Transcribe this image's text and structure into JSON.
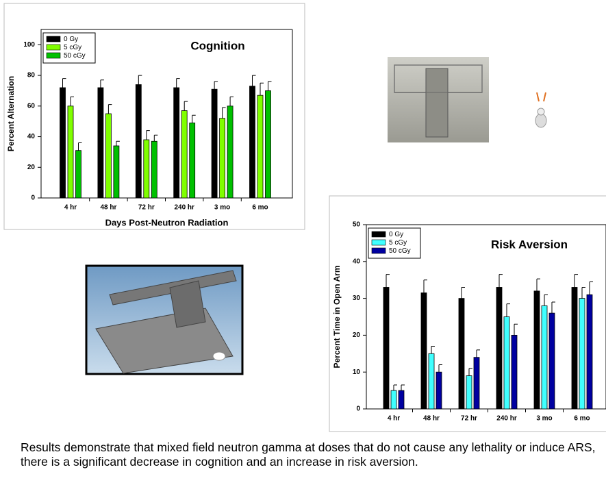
{
  "chart_data": [
    {
      "type": "bar",
      "title": "Cognition",
      "x_label": "Days Post-Neutron Radiation",
      "y_label": "Percent Alternation",
      "categories": [
        "4 hr",
        "48 hr",
        "72 hr",
        "240 hr",
        "3 mo",
        "6 mo"
      ],
      "series": [
        {
          "name": "0 Gy",
          "color": "#000000",
          "values": [
            72,
            72,
            74,
            72,
            71,
            73
          ],
          "errors": [
            6,
            5,
            6,
            6,
            5,
            7
          ]
        },
        {
          "name": "5 cGy",
          "color": "#80ff00",
          "values": [
            60,
            55,
            38,
            57,
            52,
            67
          ],
          "errors": [
            6,
            6,
            6,
            6,
            7,
            8
          ]
        },
        {
          "name": "50 cGy",
          "color": "#00c000",
          "values": [
            31,
            34,
            37,
            49,
            60,
            70
          ],
          "errors": [
            5,
            3,
            4,
            5,
            6,
            6
          ]
        }
      ],
      "ylim": [
        0,
        110
      ],
      "yticks": [
        0,
        20,
        40,
        60,
        80,
        100
      ],
      "legend": "upper left"
    },
    {
      "type": "bar",
      "title": "Risk Aversion",
      "y_label": "Percent Time in Open Arm",
      "categories": [
        "4 hr",
        "48 hr",
        "72 hr",
        "240 hr",
        "3 mo",
        "6 mo"
      ],
      "series": [
        {
          "name": "0 Gy",
          "color": "#000000",
          "values": [
            33,
            31.5,
            30,
            33,
            32,
            33
          ],
          "errors": [
            3.5,
            3.5,
            3,
            3.5,
            3.3,
            3.5
          ]
        },
        {
          "name": "5 cGy",
          "color": "#40ffff",
          "values": [
            5,
            15,
            9,
            25,
            28,
            30
          ],
          "errors": [
            1.5,
            2,
            2,
            3.5,
            3,
            3
          ]
        },
        {
          "name": "50 cGy",
          "color": "#0000a0",
          "values": [
            5,
            10,
            14,
            20,
            26,
            31
          ],
          "errors": [
            1.5,
            2,
            2,
            3,
            3,
            3.5
          ]
        }
      ],
      "ylim": [
        0,
        50
      ],
      "yticks": [
        0,
        10,
        20,
        30,
        40,
        50
      ],
      "legend": "upper left"
    }
  ],
  "caption": "Results demonstrate that mixed field neutron gamma at doses that do not cause any lethality or induce ARS, there is a significant  decrease in cognition and an increase in risk aversion."
}
